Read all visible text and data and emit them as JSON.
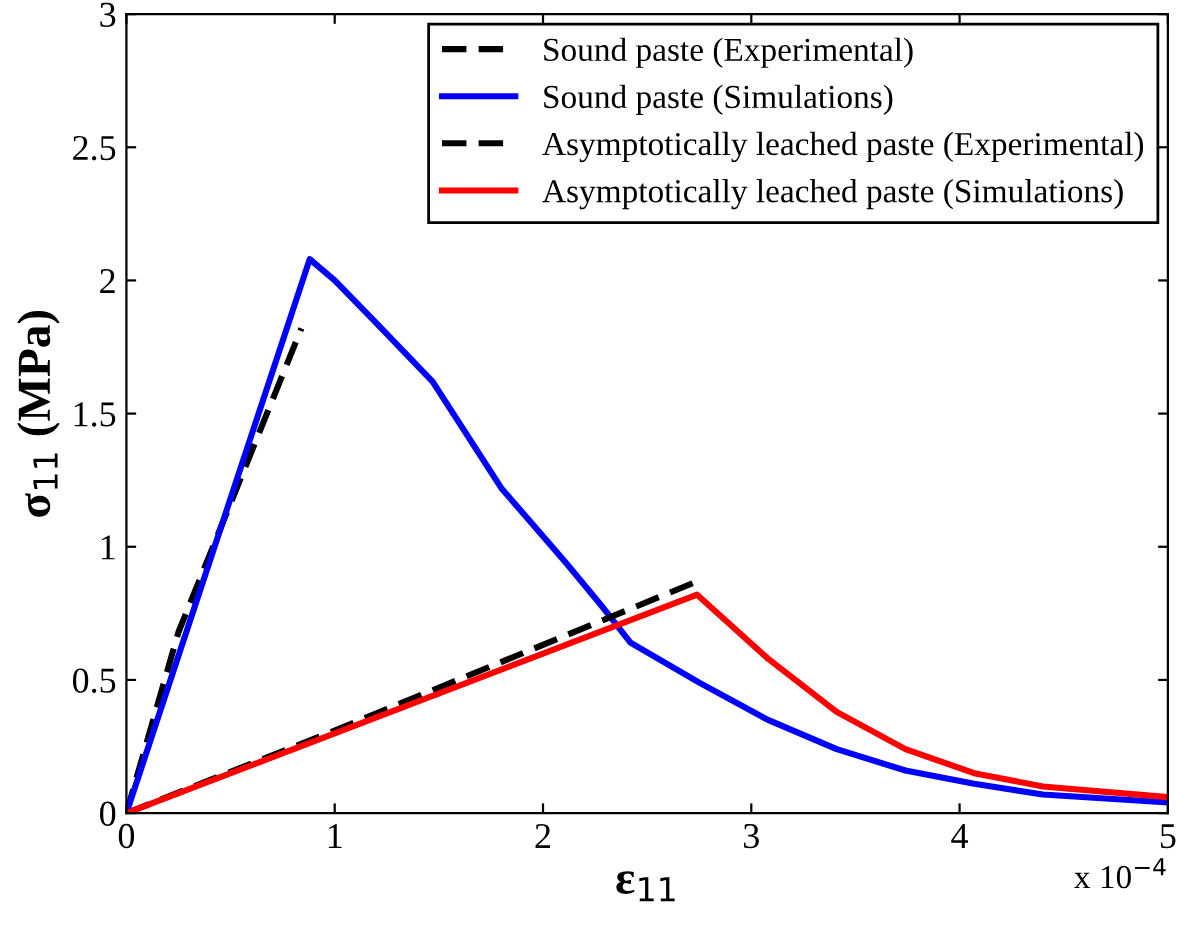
{
  "chart_data": {
    "type": "line",
    "xlabel": "ε$_{11}$",
    "ylabel": "σ$_{11}$ (MPa)",
    "annotations": [
      "x 10$^{−4}$"
    ],
    "xlim": [
      0,
      5
    ],
    "ylim": [
      0,
      3
    ],
    "xticks": [
      0,
      1,
      2,
      3,
      4,
      5
    ],
    "yticks": [
      0,
      0.5,
      1,
      1.5,
      2,
      2.5,
      3
    ],
    "grid": false,
    "legend": "top right",
    "marker": "none",
    "series": [
      {
        "name": "Sound paste (Experimental)",
        "color": "#000000",
        "line_style": "dashed",
        "x": [
          0,
          0.25,
          0.84
        ],
        "values": [
          0,
          0.68,
          1.82
        ]
      },
      {
        "name": "Sound paste (Simulations)",
        "color": "#0000ff",
        "line_style": "solid",
        "x": [
          0,
          0.88,
          1.0,
          1.2,
          1.47,
          1.8,
          2.11,
          2.29,
          2.42,
          2.75,
          3.08,
          3.41,
          3.74,
          4.07,
          4.4,
          5
        ],
        "values": [
          0,
          2.08,
          2.0,
          1.84,
          1.62,
          1.22,
          0.94,
          0.77,
          0.64,
          0.49,
          0.35,
          0.24,
          0.16,
          0.11,
          0.07,
          0.04
        ]
      },
      {
        "name": "Asymptotically leached paste (Experimental)",
        "color": "#000000",
        "line_style": "dashed",
        "x": [
          0,
          1.0,
          2.74
        ],
        "values": [
          0,
          0.31,
          0.87
        ]
      },
      {
        "name": "Asymptotically leached paste (Simulations)",
        "color": "#ff0000",
        "line_style": "solid",
        "x": [
          0,
          2.74,
          3.08,
          3.41,
          3.74,
          4.07,
          4.4,
          5
        ],
        "values": [
          0,
          0.82,
          0.58,
          0.38,
          0.24,
          0.15,
          0.1,
          0.06
        ]
      }
    ]
  }
}
